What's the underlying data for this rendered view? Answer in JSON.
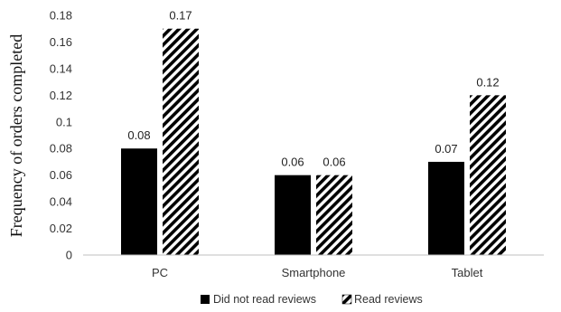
{
  "chart_data": {
    "type": "bar",
    "title": "",
    "xlabel": "",
    "ylabel": "Frequency of orders completed",
    "categories": [
      "PC",
      "Smartphone",
      "Tablet"
    ],
    "series": [
      {
        "name": "Did not read reviews",
        "values": [
          0.08,
          0.06,
          0.07
        ],
        "data_labels": [
          "0.08",
          "0.06",
          "0.07"
        ],
        "fill": "solid",
        "color": "#000000"
      },
      {
        "name": "Read reviews",
        "values": [
          0.17,
          0.06,
          0.12
        ],
        "data_labels": [
          "0.17",
          "0.06",
          "0.12"
        ],
        "fill": "diagonal-stripes",
        "color": "#000000"
      }
    ],
    "ylim": [
      0,
      0.18
    ],
    "yticks": [
      "0",
      "0.02",
      "0.04",
      "0.06",
      "0.08",
      "0.1",
      "0.12",
      "0.14",
      "0.16",
      "0.18"
    ],
    "grid": false,
    "legend_position": "bottom"
  }
}
